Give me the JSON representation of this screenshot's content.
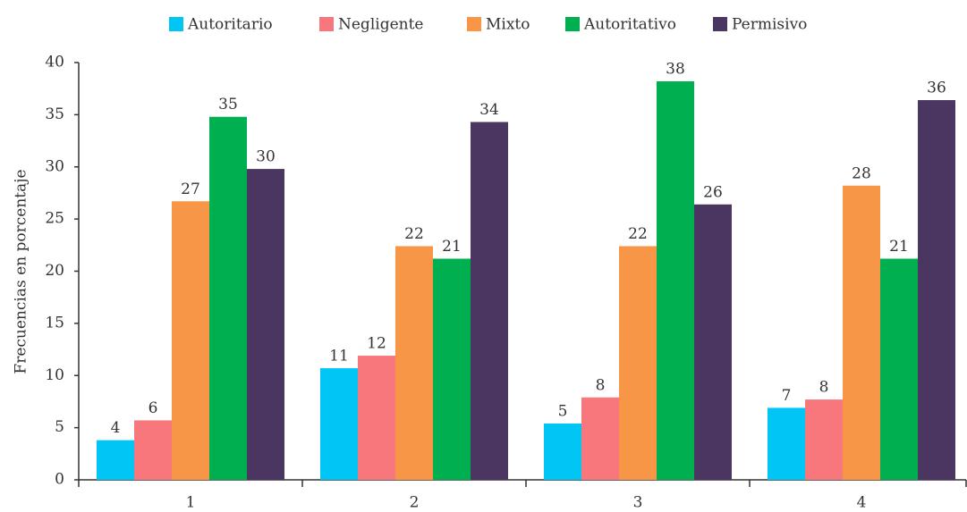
{
  "chart_data": {
    "type": "bar",
    "y_label": "Frecuencias en porcentaje",
    "categories": [
      "1",
      "2",
      "3",
      "4"
    ],
    "series": [
      {
        "name": "Autoritario",
        "color": "#00c5f5",
        "values": [
          3.8,
          10.7,
          5.4,
          6.9
        ],
        "value_labels": [
          "4",
          "11",
          "5",
          "7"
        ]
      },
      {
        "name": "Negligente",
        "color": "#f7777c",
        "values": [
          5.7,
          11.9,
          7.9,
          7.7
        ],
        "value_labels": [
          "6",
          "12",
          "8",
          "8"
        ]
      },
      {
        "name": "Mixto",
        "color": "#f79646",
        "values": [
          26.7,
          22.4,
          22.4,
          28.2
        ],
        "value_labels": [
          "27",
          "22",
          "22",
          "28"
        ]
      },
      {
        "name": "Autoritativo",
        "color": "#00b050",
        "values": [
          34.8,
          21.2,
          38.2,
          21.2
        ],
        "value_labels": [
          "35",
          "21",
          "38",
          "21"
        ]
      },
      {
        "name": "Permisivo",
        "color": "#4a3660",
        "values": [
          29.8,
          34.3,
          26.4,
          36.4
        ],
        "value_labels": [
          "30",
          "34",
          "26",
          "36"
        ]
      }
    ],
    "ylim": [
      0,
      40
    ],
    "yticks": [
      0,
      5,
      10,
      15,
      20,
      25,
      30,
      35,
      40
    ],
    "grid": false,
    "legend": "top"
  }
}
